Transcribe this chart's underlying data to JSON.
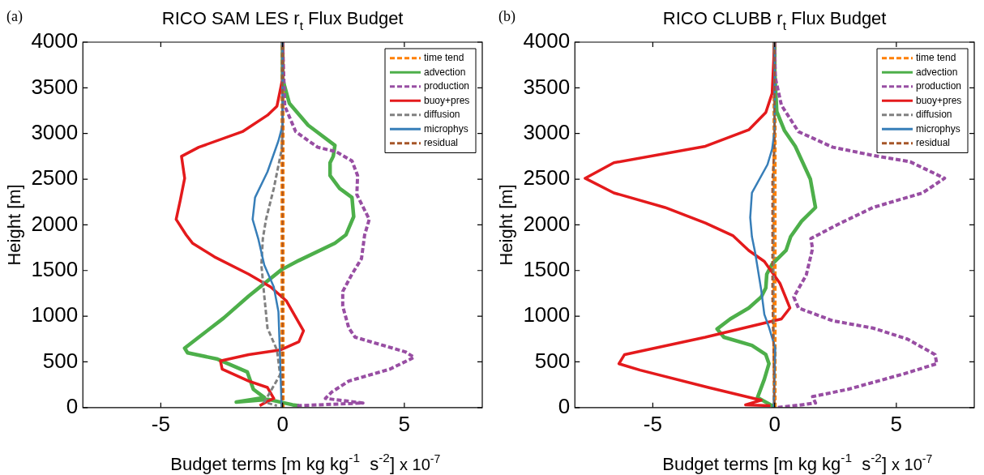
{
  "chart_data": [
    {
      "type": "line",
      "title": "RICO SAM LES r$_{t}$ Flux Budget",
      "xlabel": "Budget terms [m kg kg$^{-1}$  s$^{-2}$]",
      "ylabel": "Height [m]",
      "annotations": [
        "(a)",
        "x 10$^{-7}$"
      ],
      "xlim": [
        -8.2,
        8.2
      ],
      "xticks": [
        -5,
        0,
        5
      ],
      "ylim": [
        0,
        4000
      ],
      "yticks": [
        0,
        500,
        1000,
        1500,
        2000,
        2500,
        3000,
        3500,
        4000
      ],
      "legend": "top right",
      "series": [
        {
          "name": "time tend",
          "color": "#ff7f00",
          "line_style": "dashed",
          "x": [
            0,
            0,
            0
          ],
          "values": [
            0,
            2000,
            4000
          ]
        },
        {
          "name": "advection",
          "color": "#4daf4a",
          "line_style": "solid",
          "x": [
            0,
            0,
            0.28,
            1.05,
            2.15,
            2.08,
            1.95,
            1.95,
            2.34,
            2.85,
            2.92,
            2.6,
            2.15,
            0.67,
            -0.04,
            -1.39,
            -2.42,
            -3.44,
            -4.02,
            -3.9,
            -2.67,
            -1.45,
            -1.2,
            -0.75,
            -1.9,
            -0.6,
            0.41,
            0.67
          ],
          "values": [
            4000,
            3600,
            3330,
            3090,
            2870,
            2750,
            2680,
            2540,
            2400,
            2300,
            2090,
            1890,
            1800,
            1610,
            1510,
            1220,
            980,
            770,
            650,
            600,
            530,
            390,
            200,
            110,
            60,
            90,
            30,
            20
          ]
        },
        {
          "name": "production",
          "color": "#984ea3",
          "line_style": "dashed",
          "x": [
            0,
            0.09,
            0.54,
            1.44,
            2.21,
            2.85,
            3.08,
            3.05,
            3.24,
            3.56,
            3.37,
            3.24,
            2.85,
            2.47,
            2.47,
            2.72,
            2.98,
            5.04,
            5.4,
            4.4,
            2.72,
            2.02,
            1.76,
            3.3,
            0.6
          ],
          "values": [
            4000,
            3300,
            3020,
            2850,
            2800,
            2700,
            2540,
            2330,
            2230,
            2060,
            1890,
            1630,
            1460,
            1270,
            1110,
            870,
            770,
            610,
            550,
            420,
            290,
            170,
            100,
            50,
            20
          ]
        },
        {
          "name": "buoy+pres",
          "color": "#e41a1c",
          "line_style": "solid",
          "x": [
            0,
            0,
            -0.23,
            -0.62,
            -1.65,
            -3.44,
            -4.15,
            -4.02,
            -4.2,
            -4.37,
            -3.96,
            -3.7,
            -2.8,
            -1.39,
            -0.49,
            0.15,
            0.86,
            0.67,
            -0.1,
            -1.39,
            -2.55,
            -2.48,
            -1.39,
            -0.62,
            -0.36,
            -0.75,
            -0.94
          ],
          "values": [
            4000,
            3600,
            3300,
            3200,
            3020,
            2850,
            2750,
            2510,
            2270,
            2060,
            1890,
            1800,
            1650,
            1460,
            1320,
            1170,
            840,
            720,
            630,
            580,
            510,
            420,
            290,
            220,
            100,
            50,
            20
          ]
        },
        {
          "name": "diffusion",
          "color": "#808080",
          "line_style": "dashed",
          "x": [
            0,
            0,
            -0.04,
            -0.36,
            -0.68,
            -0.81,
            -0.87,
            -0.75,
            -0.62,
            -0.23,
            -0.1,
            -0.49,
            -0.75,
            -0.23
          ],
          "values": [
            4000,
            3000,
            2820,
            2400,
            2060,
            1850,
            1560,
            1220,
            870,
            630,
            360,
            180,
            60,
            20
          ]
        },
        {
          "name": "microphys",
          "color": "#377eb8",
          "line_style": "solid",
          "x": [
            0,
            0,
            -0.17,
            -0.62,
            -1.13,
            -1.23,
            -1.0,
            -0.75,
            -0.36,
            -0.17,
            -0.1,
            -0.04
          ],
          "values": [
            4000,
            3090,
            2920,
            2580,
            2300,
            2060,
            1850,
            1560,
            1320,
            1050,
            530,
            0
          ]
        },
        {
          "name": "residual",
          "color": "#a65628",
          "line_style": "dashed",
          "x": [
            0,
            0,
            0
          ],
          "values": [
            0,
            2000,
            4000
          ]
        }
      ]
    },
    {
      "type": "line",
      "title": "RICO CLUBB r$_{t}$ Flux Budget",
      "xlabel": "Budget terms [m kg kg$^{-1}$  s$^{-2}$]",
      "ylabel": "Height [m]",
      "annotations": [
        "(b)",
        "x 10$^{-7}$"
      ],
      "xlim": [
        -8.2,
        8.2
      ],
      "xticks": [
        -5,
        0,
        5
      ],
      "ylim": [
        0,
        4000
      ],
      "yticks": [
        0,
        500,
        1000,
        1500,
        2000,
        2500,
        3000,
        3500,
        4000
      ],
      "legend": "top right",
      "series": [
        {
          "name": "time tend",
          "color": "#ff7f00",
          "line_style": "dashed",
          "x": [
            0,
            0,
            0
          ],
          "values": [
            0,
            2000,
            4000
          ]
        },
        {
          "name": "advection",
          "color": "#4daf4a",
          "line_style": "solid",
          "x": [
            0,
            0,
            0.09,
            0.41,
            0.85,
            1.47,
            1.68,
            1.11,
            0.66,
            0.47,
            -0.1,
            -0.32,
            -0.36,
            -0.55,
            -1.06,
            -1.82,
            -2.36,
            -2.08,
            -0.93,
            -0.36,
            -0.23,
            -0.42,
            -0.7,
            -0.1,
            0
          ],
          "values": [
            4000,
            3700,
            3240,
            3030,
            2860,
            2500,
            2190,
            2040,
            1870,
            1720,
            1570,
            1460,
            1310,
            1210,
            1090,
            970,
            860,
            770,
            680,
            580,
            480,
            310,
            110,
            20,
            0
          ]
        },
        {
          "name": "production",
          "color": "#984ea3",
          "line_style": "dashed",
          "x": [
            0,
            0.03,
            0.28,
            0.98,
            2.39,
            4.04,
            5.57,
            6.98,
            6.08,
            4.04,
            2.64,
            1.49,
            1.56,
            1.3,
            0.79,
            0.98,
            2.39,
            4.04,
            5.45,
            6.59,
            6.66,
            5.32,
            3.02,
            1.56,
            1.68,
            1.11,
            0.09
          ],
          "values": [
            4000,
            3610,
            3310,
            3020,
            2850,
            2760,
            2690,
            2510,
            2350,
            2190,
            2010,
            1850,
            1740,
            1450,
            1210,
            1090,
            950,
            870,
            750,
            580,
            480,
            370,
            200,
            120,
            50,
            30,
            0
          ]
        },
        {
          "name": "buoy+pres",
          "color": "#e41a1c",
          "line_style": "solid",
          "x": [
            0,
            -0.1,
            -0.36,
            -1.06,
            -2.84,
            -6.6,
            -7.78,
            -6.6,
            -4.5,
            -2.84,
            -1.7,
            -1.06,
            -0.42,
            0.22,
            0.63,
            0.28,
            -2.84,
            -6.16,
            -6.39,
            -5.52,
            -2.72,
            -0.55,
            -1.19,
            -0.17
          ],
          "values": [
            4000,
            3440,
            3230,
            3040,
            2860,
            2680,
            2510,
            2350,
            2190,
            2020,
            1880,
            1720,
            1600,
            1360,
            1090,
            970,
            770,
            580,
            480,
            410,
            220,
            80,
            30,
            20
          ]
        },
        {
          "name": "diffusion",
          "color": "#808080",
          "line_style": "dashed",
          "x": [
            0,
            0,
            -0.05,
            -0.05,
            0
          ],
          "values": [
            4000,
            2900,
            2500,
            1000,
            0
          ]
        },
        {
          "name": "microphys",
          "color": "#377eb8",
          "line_style": "solid",
          "x": [
            0,
            0,
            -0.1,
            -0.29,
            -0.93,
            -1.0,
            -0.93,
            -0.8,
            -0.55,
            -0.42,
            -0.23,
            0.03,
            -0.04
          ],
          "values": [
            4000,
            3030,
            2830,
            2660,
            2350,
            2080,
            1870,
            1700,
            1290,
            1020,
            880,
            650,
            0
          ]
        },
        {
          "name": "residual",
          "color": "#a65628",
          "line_style": "dashed",
          "x": [
            0,
            0,
            -0.1,
            -0.1,
            0
          ],
          "values": [
            4000,
            2900,
            2500,
            1200,
            0
          ]
        }
      ]
    }
  ]
}
